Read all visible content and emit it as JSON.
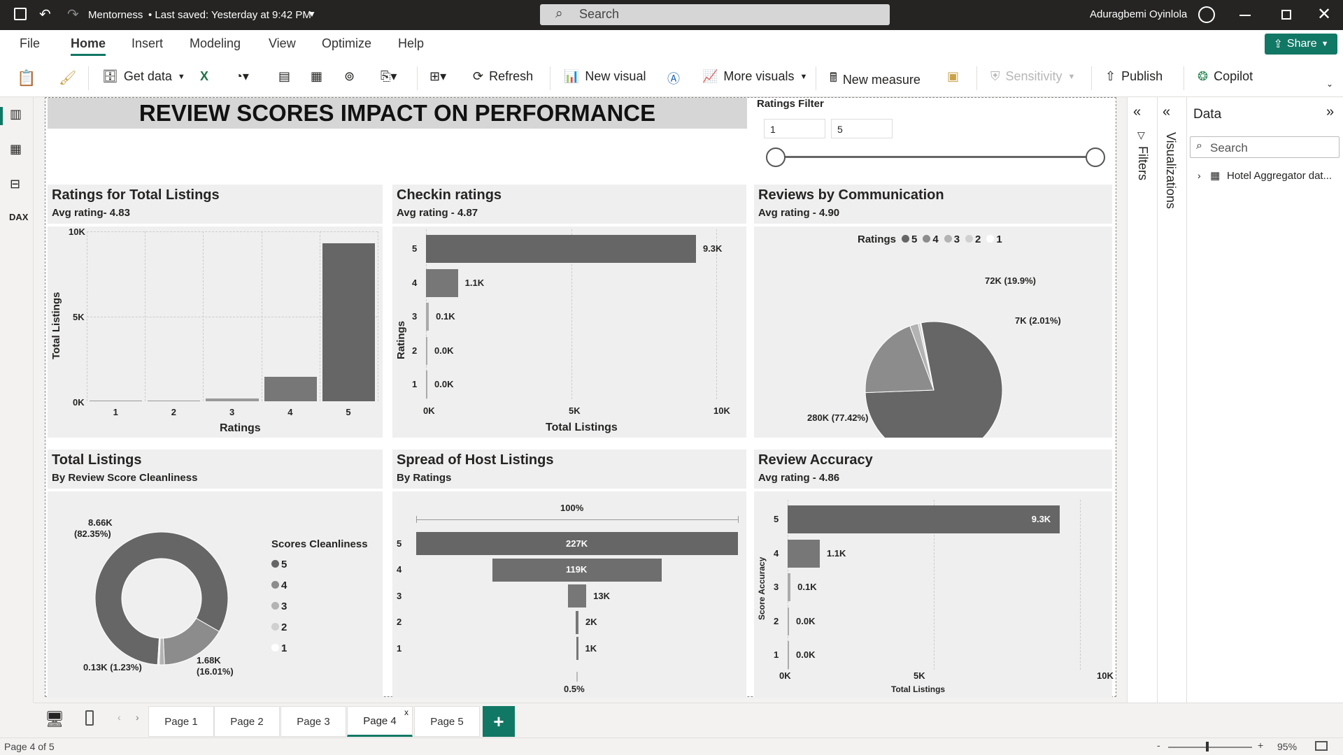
{
  "titlebar": {
    "file_name": "Mentorness",
    "saved": "• Last saved: Yesterday at 9:42 PM",
    "search_placeholder": "Search",
    "user": "Aduragbemi Oyinlola"
  },
  "menu": {
    "items": [
      "File",
      "Home",
      "Insert",
      "Modeling",
      "View",
      "Optimize",
      "Help"
    ],
    "share": "Share"
  },
  "ribbon": {
    "get_data": "Get data",
    "refresh": "Refresh",
    "new_visual": "New visual",
    "more_visuals": "More visuals",
    "new_measure": "New measure",
    "sensitivity": "Sensitivity",
    "publish": "Publish",
    "copilot": "Copilot"
  },
  "report": {
    "title": "REVIEW SCORES IMPACT ON PERFORMANCE",
    "slicer": {
      "label": "Ratings Filter",
      "min": "1",
      "max": "5"
    },
    "c1": {
      "title": "Ratings for Total Listings",
      "sub": "Avg rating- 4.83",
      "ylabel": "Total Listings",
      "xlabel": "Ratings",
      "yticks": [
        "10K",
        "5K",
        "0K"
      ]
    },
    "c2": {
      "title": "Checkin ratings",
      "sub": "Avg rating - 4.87",
      "ylabel": "Ratings",
      "xlabel": "Total Listings",
      "xticks": [
        "0K",
        "5K",
        "10K"
      ]
    },
    "c3": {
      "title": "Reviews by Communication",
      "sub": "Avg rating - 4.90",
      "legend_title": "Ratings",
      "labels": [
        "72K (19.9%)",
        "7K (2.01%)",
        "280K (77.42%)"
      ]
    },
    "c4": {
      "title": "Total Listings",
      "sub": "By Review Score Cleanliness",
      "legend_title": "Scores Cleanliness",
      "label_a1": "8.66K",
      "label_a2": "(82.35%)",
      "label_b1": "1.68K",
      "label_b2": "(16.01%)",
      "label_c": "0.13K (1.23%)"
    },
    "c5": {
      "title": "Spread of Host Listings",
      "sub": "By Ratings",
      "top": "100%",
      "bottom": "0.5%"
    },
    "c6": {
      "title": "Review Accuracy",
      "sub": "Avg rating - 4.86",
      "ylabel": "Score Accuracy",
      "xlabel": "Total Listings",
      "xticks": [
        "0K",
        "5K",
        "10K"
      ]
    }
  },
  "chart_data": [
    {
      "type": "bar",
      "title": "Ratings for Total Listings",
      "categories": [
        "1",
        "2",
        "3",
        "4",
        "5"
      ],
      "values": [
        0,
        60,
        150,
        1450,
        9300
      ],
      "xlabel": "Ratings",
      "ylabel": "Total Listings",
      "ylim": [
        0,
        10000
      ]
    },
    {
      "type": "bar",
      "title": "Checkin ratings",
      "categories": [
        "5",
        "4",
        "3",
        "2",
        "1"
      ],
      "values": [
        9300,
        1100,
        100,
        0,
        0
      ],
      "labels": [
        "9.3K",
        "1.1K",
        "0.1K",
        "0.0K",
        "0.0K"
      ],
      "xlabel": "Total Listings",
      "ylabel": "Ratings",
      "xlim": [
        0,
        10000
      ]
    },
    {
      "type": "pie",
      "title": "Reviews by Communication",
      "categories": [
        "5",
        "4",
        "3",
        "2",
        "1"
      ],
      "values": [
        77.42,
        19.9,
        2.01,
        0.5,
        0.17
      ]
    },
    {
      "type": "pie",
      "title": "Total Listings",
      "categories": [
        "5",
        "4",
        "3",
        "2",
        "1"
      ],
      "values": [
        82.35,
        16.01,
        1.23,
        0.3,
        0.11
      ]
    },
    {
      "type": "bar",
      "title": "Spread of Host Listings",
      "categories": [
        "5",
        "4",
        "3",
        "2",
        "1"
      ],
      "values": [
        227,
        119,
        13,
        2,
        1
      ],
      "labels": [
        "227K",
        "119K",
        "13K",
        "2K",
        "1K"
      ]
    },
    {
      "type": "bar",
      "title": "Review Accuracy",
      "categories": [
        "5",
        "4",
        "3",
        "2",
        "1"
      ],
      "values": [
        9300,
        1100,
        100,
        0,
        0
      ],
      "labels": [
        "9.3K",
        "1.1K",
        "0.1K",
        "0.0K",
        "0.0K"
      ],
      "xlabel": "Total Listings",
      "ylabel": "Score Accuracy",
      "xlim": [
        0,
        10000
      ]
    }
  ],
  "panes": {
    "filters": "Filters",
    "visualizations": "Visualizations",
    "data_title": "Data",
    "search": "Search",
    "table": "Hotel Aggregator dat..."
  },
  "pages": [
    "Page 1",
    "Page 2",
    "Page 3",
    "Page 4",
    "Page 5"
  ],
  "status": {
    "page": "Page 4 of 5",
    "zoom": "95%"
  },
  "colors": {
    "accent": "#117865",
    "bar": "#666666"
  }
}
